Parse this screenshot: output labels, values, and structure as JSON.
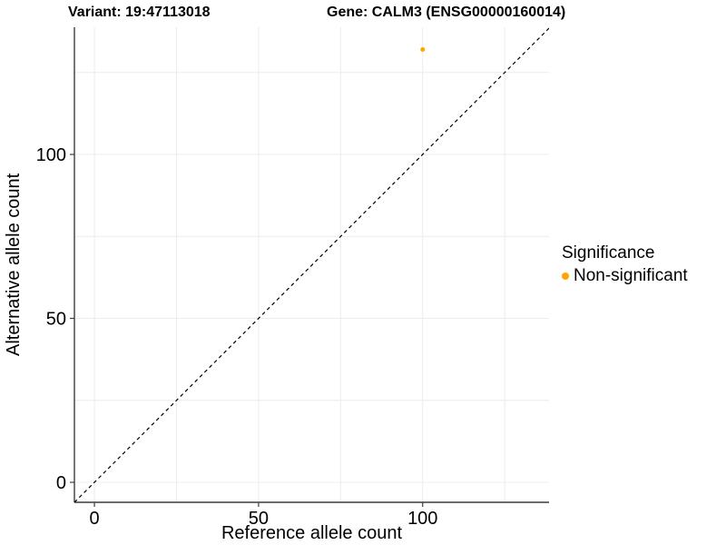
{
  "chart_data": {
    "type": "scatter",
    "title": "Variant: 19:47113018    Gene: CALM3 (ENSG00000160014)",
    "titles": {
      "left": "Variant: 19:47113018",
      "right": "Gene: CALM3 (ENSG00000160014)"
    },
    "xlabel": "Reference allele count",
    "ylabel": "Alternative allele count",
    "xlim": [
      -6.1,
      138.5
    ],
    "ylim": [
      -6.1,
      138.8
    ],
    "x_ticks": [
      0,
      50,
      100
    ],
    "y_ticks": [
      0,
      50,
      100
    ],
    "grid": true,
    "grid_interval": 25,
    "points": [
      {
        "x": 100,
        "y": 132,
        "series": "Non-significant",
        "color": "#FFA500"
      }
    ],
    "identity_line": {
      "slope": 1,
      "intercept": 0,
      "style": "dashed",
      "color": "#000000"
    },
    "legend": {
      "title": "Significance",
      "position": "right",
      "entries": [
        {
          "label": "Non-significant",
          "color": "#FFA500"
        }
      ]
    },
    "colors": {
      "point": "#FFA500",
      "gridline": "#ECECEC",
      "axis_line": "#3C3C3C",
      "tick_label": "#000000",
      "panel_background": "#FFFFFF"
    }
  }
}
